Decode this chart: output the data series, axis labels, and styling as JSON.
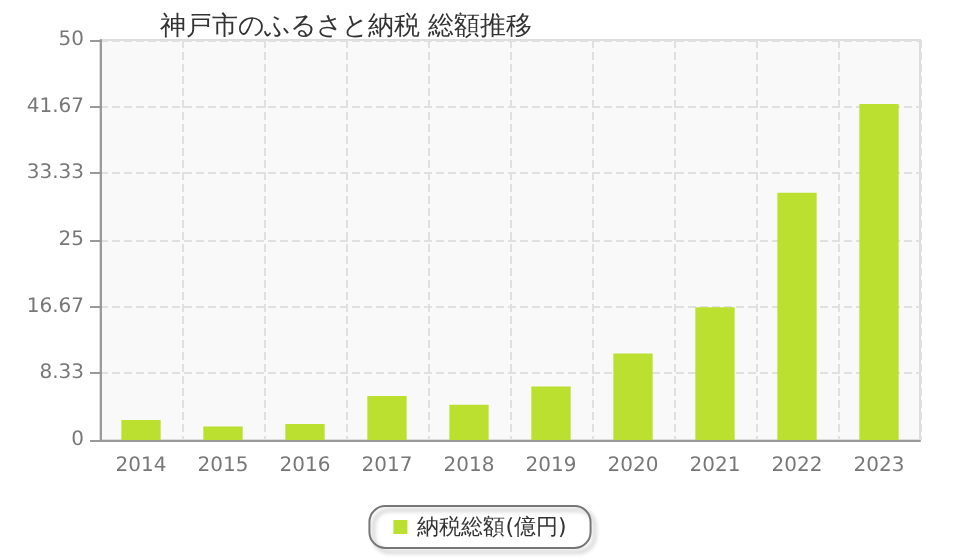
{
  "chart_data": {
    "type": "bar",
    "title": "神戸市のふるさと納税 総額推移",
    "categories": [
      "2014",
      "2015",
      "2016",
      "2017",
      "2018",
      "2019",
      "2020",
      "2021",
      "2022",
      "2023"
    ],
    "series": [
      {
        "name": "納税総額(億円)",
        "color": "#bce02f",
        "values": [
          2.5,
          1.7,
          2.0,
          5.5,
          4.4,
          6.7,
          10.8,
          16.6,
          30.9,
          42.0
        ]
      }
    ],
    "ylim": [
      0,
      50
    ],
    "yticks": [
      0,
      {
        "value": 8.333,
        "label": "8.33"
      },
      {
        "value": 16.667,
        "label": "16.67"
      },
      25,
      {
        "value": 33.333,
        "label": "33.33"
      },
      {
        "value": 41.667,
        "label": "41.67"
      },
      50
    ],
    "grid": true,
    "legend": "bottom"
  }
}
